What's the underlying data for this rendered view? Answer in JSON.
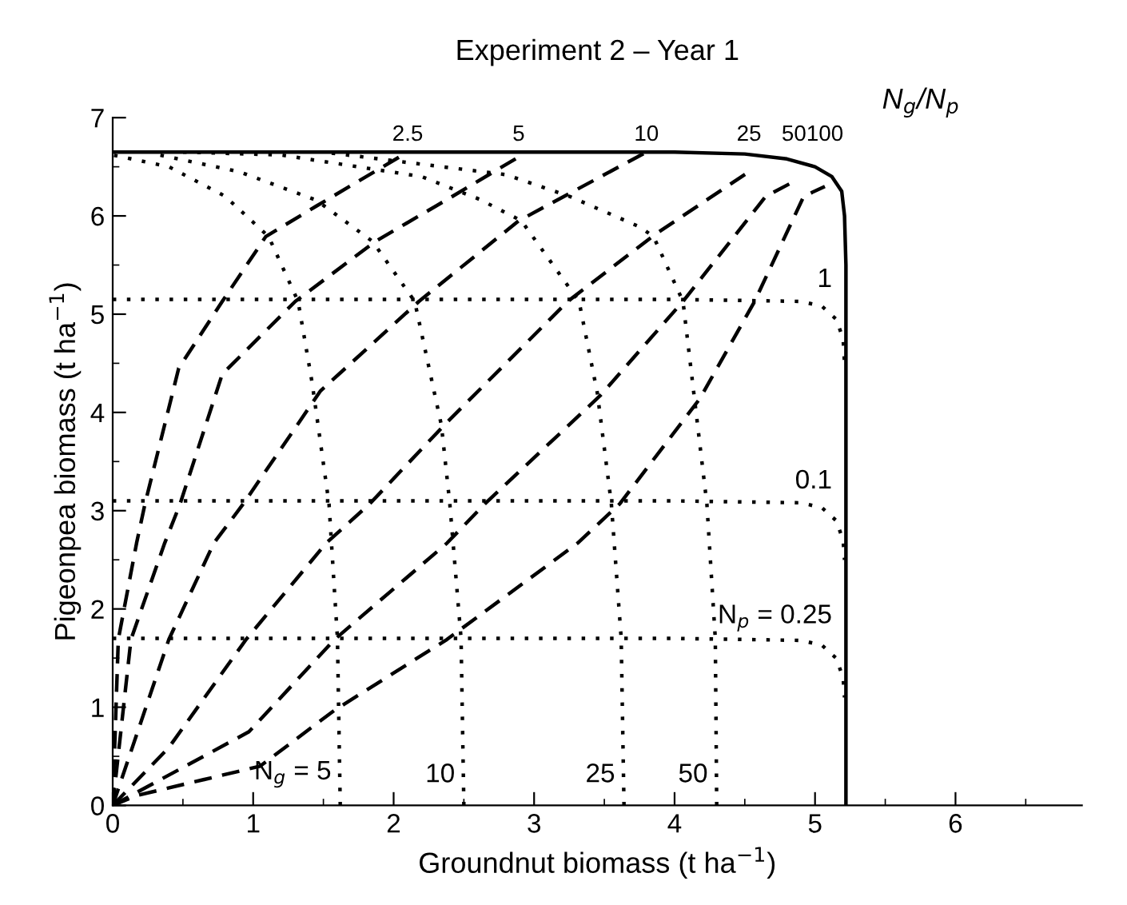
{
  "chart_data": {
    "type": "line",
    "title": "Experiment 2 – Year 1",
    "xlabel": "Groundnut biomass (t ha$^{−1}$)",
    "ylabel": "Pigeonpea biomass (t ha$^{−1}$)",
    "xlim": [
      0,
      6.9
    ],
    "ylim": [
      0,
      7
    ],
    "xticks": [
      0,
      1,
      2,
      3,
      4,
      5,
      6
    ],
    "yticks": [
      0,
      1,
      2,
      3,
      4,
      5,
      6,
      7
    ],
    "grid": false,
    "legend": false,
    "marker": "none",
    "annotations": [
      "N$_{g}$/N$_{p}$"
    ],
    "series": [
      {
        "color": "#000000",
        "line_style": "solid",
        "x": [
          0,
          1,
          2,
          3,
          4,
          4.5,
          4.8,
          5.0,
          5.12,
          5.19,
          5.21,
          5.22,
          5.22
        ],
        "values": [
          6.65,
          6.65,
          6.65,
          6.65,
          6.65,
          6.63,
          6.58,
          6.5,
          6.4,
          6.25,
          6.0,
          5.5,
          0
        ]
      },
      {
        "name": "2.5",
        "color": "#000000",
        "line_style": "dashed",
        "x": [
          0,
          0.04,
          0.17,
          0.23,
          0.47,
          0.78,
          1.09,
          1.45,
          2.1
        ],
        "values": [
          0,
          1.69,
          2.67,
          3.07,
          4.45,
          5.13,
          5.79,
          6.1,
          6.65
        ]
      },
      {
        "name": "5",
        "color": "#000000",
        "line_style": "dashed",
        "x": [
          0,
          0.13,
          0.37,
          0.48,
          0.78,
          1.3,
          1.87,
          2.42,
          2.89
        ],
        "values": [
          0,
          1.69,
          2.67,
          3.07,
          4.39,
          5.13,
          5.74,
          6.2,
          6.6
        ]
      },
      {
        "name": "10",
        "color": "#000000",
        "line_style": "dashed",
        "x": [
          0,
          0.4,
          0.72,
          0.93,
          1.48,
          2.18,
          2.89,
          3.8
        ],
        "values": [
          0,
          1.69,
          2.67,
          3.07,
          4.22,
          5.13,
          5.95,
          6.65
        ]
      },
      {
        "name": "25",
        "color": "#000000",
        "line_style": "dashed",
        "x": [
          0,
          0.4,
          0.95,
          1.52,
          1.83,
          2.38,
          3.24,
          3.86,
          4.53
        ],
        "values": [
          0,
          0.59,
          1.69,
          2.67,
          3.07,
          3.9,
          5.13,
          5.81,
          6.45
        ]
      },
      {
        "name": "50",
        "color": "#000000",
        "line_style": "dashed",
        "x": [
          0,
          0.97,
          1.58,
          2.38,
          2.65,
          3.47,
          4.06,
          4.65,
          4.85
        ],
        "values": [
          0,
          0.75,
          1.69,
          2.67,
          3.07,
          4.17,
          5.13,
          6.2,
          6.35
        ]
      },
      {
        "name": "100",
        "color": "#000000",
        "line_style": "dashed",
        "x": [
          0,
          0.17,
          1.05,
          1.58,
          2.38,
          3.31,
          3.61,
          4.18,
          4.57,
          4.92,
          5.07
        ],
        "values": [
          0,
          0.1,
          0.4,
          0.97,
          1.69,
          2.67,
          3.07,
          4.14,
          5.13,
          6.2,
          6.3
        ]
      },
      {
        "name": "1",
        "color": "#000000",
        "line_style": "dotted",
        "x": [
          0,
          2,
          4,
          4.9,
          5.05,
          5.15,
          5.2,
          5.21
        ],
        "values": [
          5.15,
          5.15,
          5.15,
          5.13,
          5.08,
          4.95,
          4.75,
          4.5
        ]
      },
      {
        "name": "0.1",
        "color": "#000000",
        "line_style": "dotted",
        "x": [
          0,
          2,
          4,
          4.9,
          5.05,
          5.15,
          5.2,
          5.21
        ],
        "values": [
          3.1,
          3.1,
          3.1,
          3.08,
          3.03,
          2.9,
          2.7,
          2.5
        ]
      },
      {
        "name": "N$_{p}$ = 0.25",
        "color": "#000000",
        "line_style": "dotted",
        "x": [
          0,
          2,
          4,
          4.9,
          5.05,
          5.15,
          5.2,
          5.21
        ],
        "values": [
          1.7,
          1.7,
          1.7,
          1.68,
          1.63,
          1.5,
          1.3,
          1.1
        ]
      },
      {
        "name": "N$_{g}$ = 5",
        "color": "#000000",
        "line_style": "dotted",
        "x": [
          1.62,
          1.6,
          1.54,
          1.42,
          1.32,
          1.11,
          0.8,
          0.4,
          0
        ],
        "values": [
          0,
          1.7,
          3.07,
          4.3,
          5.13,
          5.79,
          6.2,
          6.5,
          6.62
        ]
      },
      {
        "name": "10",
        "color": "#000000",
        "line_style": "dotted",
        "x": [
          2.5,
          2.48,
          2.4,
          2.34,
          2.15,
          1.85,
          1.45,
          0.9,
          0.3
        ],
        "values": [
          0,
          1.7,
          3.07,
          3.87,
          5.13,
          5.74,
          6.16,
          6.45,
          6.63
        ]
      },
      {
        "name": "25",
        "color": "#000000",
        "line_style": "dotted",
        "x": [
          3.64,
          3.62,
          3.55,
          3.45,
          3.32,
          2.91,
          2.61,
          2.2,
          1.2,
          0.5
        ],
        "values": [
          0,
          1.7,
          3.07,
          4.2,
          5.13,
          5.95,
          6.17,
          6.4,
          6.62,
          6.65
        ]
      },
      {
        "name": "50",
        "color": "#000000",
        "line_style": "dotted",
        "x": [
          4.3,
          4.29,
          4.23,
          4.06,
          3.85,
          3.75,
          3.25,
          2.8,
          1.5
        ],
        "values": [
          0,
          1.7,
          3.07,
          5.13,
          5.79,
          5.89,
          6.2,
          6.42,
          6.65
        ]
      }
    ]
  }
}
